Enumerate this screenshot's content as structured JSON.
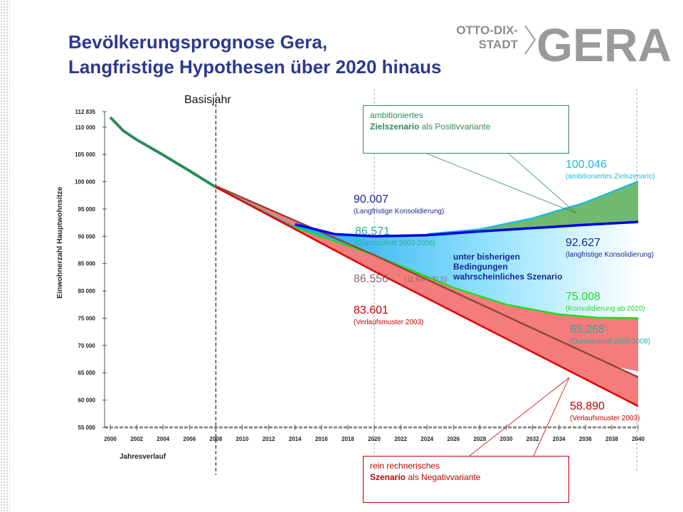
{
  "title": {
    "line1": "Bevölkerungsprognose Gera,",
    "line2": "Langfristige Hypothesen über 2020 hinaus"
  },
  "logo": {
    "line1": "OTTO-DIX-",
    "line2": "STADT",
    "word": "GERA"
  },
  "colors": {
    "title": "#2b3a8c",
    "ambitioniert": "#22b8e0",
    "konsolidierung_langfristig": "#0000e0",
    "konsolidierung_2020": "#22dd22",
    "durchschnitt": "#2fa89a",
    "kbv": "#8b4a3a",
    "verlaufsmuster": "#e00000",
    "history": "#2e8b57"
  },
  "chart_data": {
    "type": "line",
    "xlabel": "Jahresverlauf",
    "ylabel": "Einwohnerzahl Hauptwohnsitze",
    "xlim": [
      2000,
      2040
    ],
    "ylim": [
      55000,
      112835
    ],
    "x_ticks": [
      "2000",
      "2002",
      "2004",
      "2006",
      "2008",
      "2010",
      "2012",
      "2014",
      "2016",
      "2018",
      "2020",
      "2022",
      "2024",
      "2026",
      "2028",
      "2030",
      "2032",
      "2034",
      "2036",
      "2038",
      "2040"
    ],
    "y_ticks": [
      "112 835",
      "110 000",
      "105 000",
      "100 000",
      "95 000",
      "90 000",
      "85 000",
      "80 000",
      "75 000",
      "70 000",
      "65 000",
      "60 000",
      "55 000"
    ],
    "y_tick_values": [
      112835,
      110000,
      105000,
      100000,
      95000,
      90000,
      85000,
      80000,
      75000,
      70000,
      65000,
      60000,
      55000
    ],
    "basisjahr": {
      "x": 2008,
      "label": "Basisjahr"
    },
    "series": [
      {
        "key": "history",
        "x": [
          2000,
          2001,
          2002,
          2004,
          2006,
          2008
        ],
        "values": [
          111800,
          109300,
          107700,
          104900,
          102000,
          99000
        ]
      },
      {
        "key": "verlaufsmuster",
        "x": [
          2008,
          2020,
          2040
        ],
        "values": [
          99000,
          83601,
          58890
        ]
      },
      {
        "key": "kbv",
        "x": [
          2008,
          2020,
          2040
        ],
        "values": [
          99200,
          86556,
          64200
        ]
      },
      {
        "key": "durchschnitt",
        "x": [
          2008,
          2014,
          2020,
          2026,
          2032,
          2036,
          2040
        ],
        "values": [
          99000,
          91600,
          86571,
          79000,
          71500,
          67200,
          65268
        ]
      },
      {
        "key": "konsolidierung_2020",
        "x": [
          2008,
          2014,
          2020,
          2026,
          2030,
          2034,
          2037,
          2040
        ],
        "values": [
          99000,
          91600,
          86571,
          80600,
          77500,
          75700,
          75100,
          75008
        ]
      },
      {
        "key": "konsolidierung_langfristig",
        "x": [
          2014,
          2017,
          2020,
          2024,
          2028,
          2032,
          2036,
          2040
        ],
        "values": [
          92200,
          90400,
          90007,
          90200,
          90900,
          91500,
          92100,
          92627
        ]
      },
      {
        "key": "ambitioniert",
        "x": [
          2024,
          2028,
          2032,
          2036,
          2040
        ],
        "values": [
          90400,
          91300,
          93300,
          96200,
          100046
        ]
      }
    ],
    "labels": [
      {
        "value": "100.046",
        "desc": "(ambitioniertes Zielszenario)"
      },
      {
        "value": "92.627",
        "desc": "(langfristige Konsolidierung)"
      },
      {
        "value": "75.008",
        "desc": "(Konsolidierung ab 2020)"
      },
      {
        "value": "65.268",
        "desc": "(Durchschnitt 2003-2008)"
      },
      {
        "value": "58.890",
        "desc": "(Verlaufsmuster 2003)"
      },
      {
        "value": "90.007",
        "desc": "(Langfristige Konsolidierung)"
      },
      {
        "value": "86.571",
        "desc": "(Durchschnitt 2003-2008)"
      },
      {
        "value": "86.556",
        "desc": "(11.KBV TLS)"
      },
      {
        "value": "83.601",
        "desc": "(Verlaufsmuster 2003)"
      }
    ],
    "annotations": {
      "middle": [
        "unter bisherigen",
        "Bedingungen",
        "wahrscheinliches Szenario"
      ],
      "positive_line1": "ambitioniertes",
      "positive_bold": "Zielszenario",
      "positive_rest": " als Positivvariante",
      "negative_line1": "rein rechnerisches",
      "negative_bold": "Szenario",
      "negative_rest": " als Negativvariante"
    }
  }
}
